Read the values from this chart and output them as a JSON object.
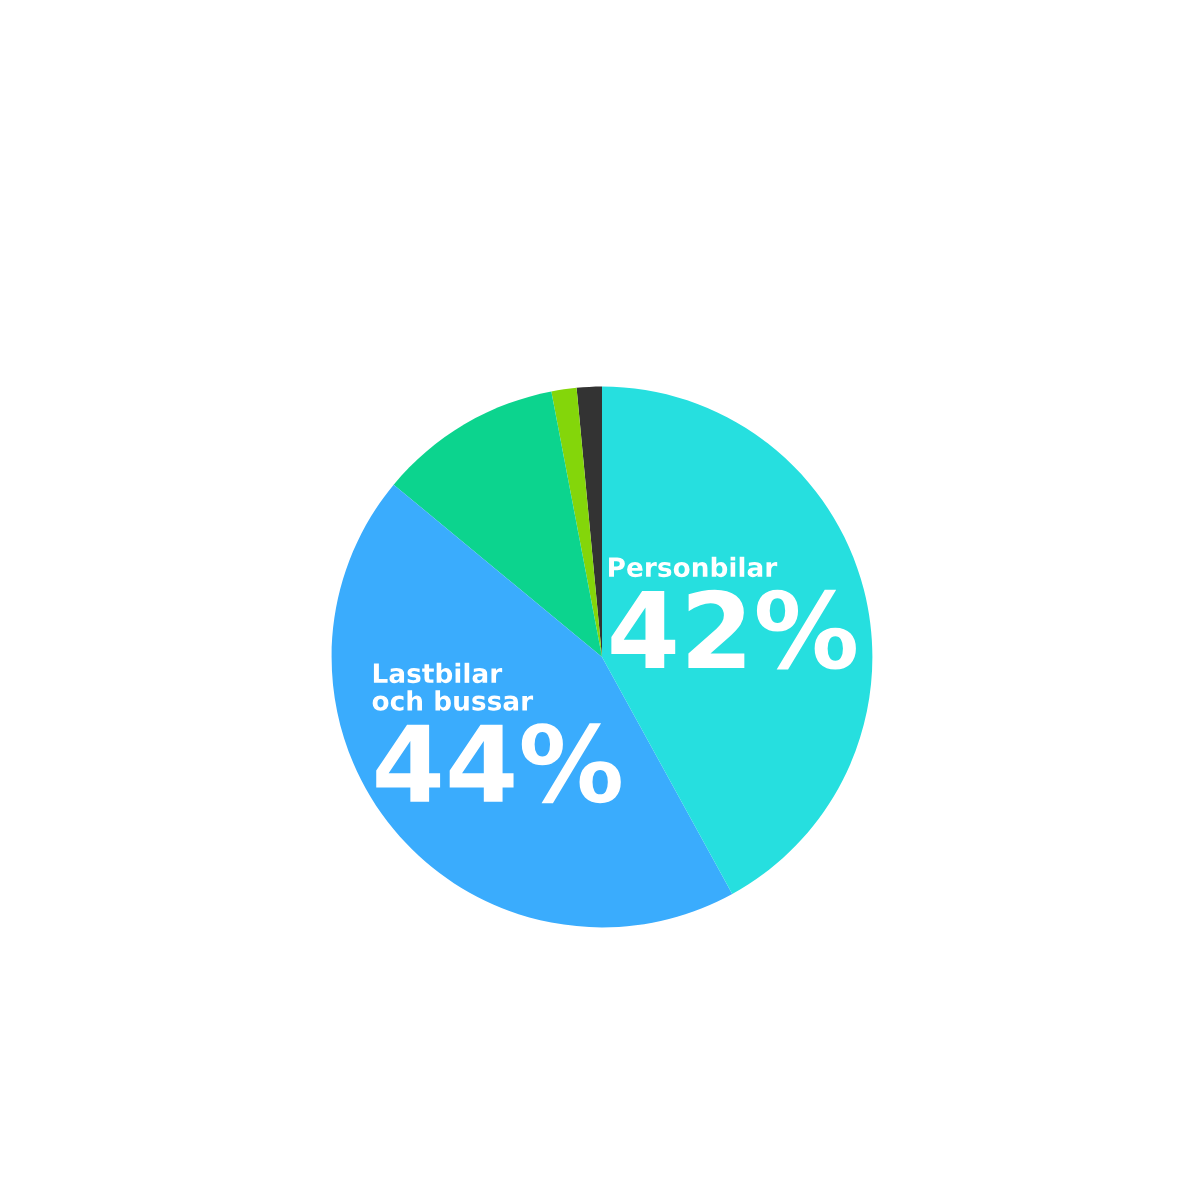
{
  "chart_data": {
    "type": "pie",
    "categories": [
      null,
      null,
      null,
      "Lastbilar\noch bussar",
      "Personbilar"
    ],
    "values": [
      1.5,
      1.5,
      11,
      44,
      42
    ],
    "colors": [
      "#333333",
      "#84d60a",
      "#0cd48e",
      "#3aacfd",
      "#26dfdf"
    ],
    "value_labels": [
      null,
      null,
      null,
      "44%",
      "42%"
    ]
  }
}
